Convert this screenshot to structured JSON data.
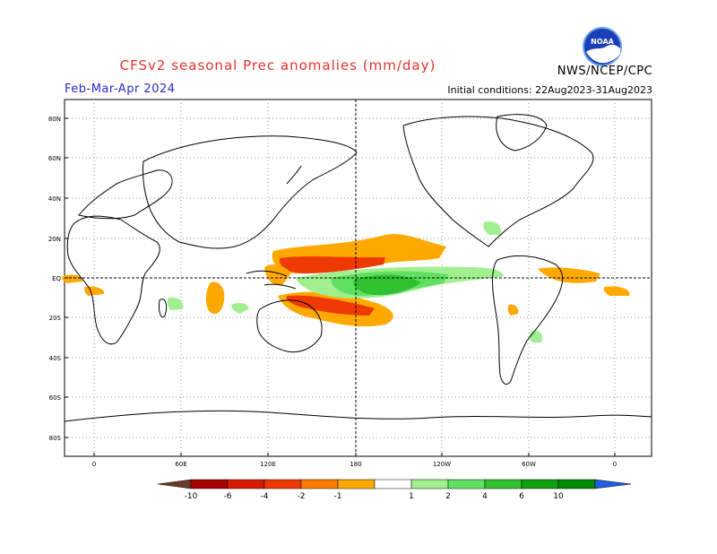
{
  "title": "CFSv2 seasonal Prec anomalies (mm/day)",
  "agency": "NWS/NCEP/CPC",
  "logo_text": "NOAA",
  "season": "Feb-Mar-Apr 2024",
  "initial_conditions": "Initial conditions: 22Aug2023-31Aug2023",
  "lat_labels": [
    "80N",
    "60N",
    "40N",
    "20N",
    "EQ",
    "20S",
    "40S",
    "60S",
    "80S"
  ],
  "lon_labels": [
    "0",
    "60E",
    "120E",
    "180",
    "120W",
    "60W",
    "0"
  ],
  "colorbar": {
    "labels": [
      "-10",
      "-6",
      "-4",
      "-2",
      "-1",
      "1",
      "2",
      "4",
      "6",
      "10"
    ],
    "colors": [
      "#6b3a26",
      "#a80000",
      "#d81a00",
      "#ee3a00",
      "#ff7a00",
      "#ffa800",
      "#ffffff",
      "#a0f090",
      "#60e060",
      "#30c030",
      "#10a010",
      "#008c00",
      "#2060e0"
    ]
  },
  "chart_data": {
    "type": "heatmap",
    "variable": "Prec anomalies (mm/day)",
    "season": "Feb-Mar-Apr 2024",
    "anomaly_regions": [
      {
        "region": "Tropical North-Central Pacific (~5-15N, 120E-150W)",
        "min": -6,
        "max": -2
      },
      {
        "region": "Maritime Continent / Western Pacific (~0-10N)",
        "min": -4,
        "max": -1
      },
      {
        "region": "Southwest Pacific / Coral Sea (~10-25S, 140E-150W)",
        "min": -6,
        "max": -1
      },
      {
        "region": "Equatorial Central-East Pacific (~5S-5N, 170E-90W)",
        "min": 1,
        "max": 6
      },
      {
        "region": "Northern South America / Equatorial Atlantic",
        "min": -2,
        "max": -1
      },
      {
        "region": "Southern Indian Ocean / Madagascar area",
        "min": -2,
        "max": -1
      },
      {
        "region": "Western Australia coast (~15S, 115E)",
        "min": -2,
        "max": -1
      },
      {
        "region": "Central America / Caribbean",
        "min": 1,
        "max": 2
      },
      {
        "region": "Southeast Brazil (~30S, 50W)",
        "min": 1,
        "max": 2
      }
    ]
  }
}
